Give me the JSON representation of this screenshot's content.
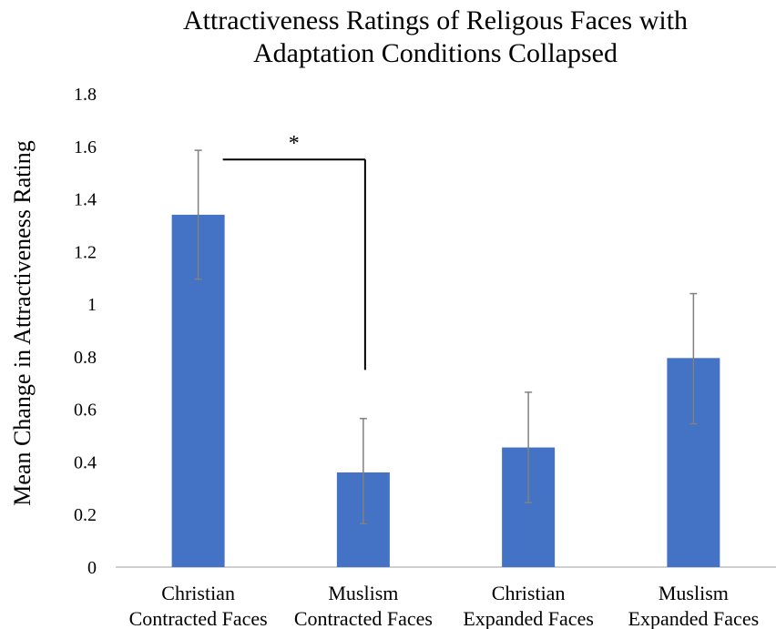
{
  "chart_data": {
    "type": "bar",
    "title_lines": [
      "Attractiveness Ratings of Religous Faces with",
      "Adaptation Conditions Collapsed"
    ],
    "ylabel": "Mean Change in Attractiveness Rating",
    "xlabel": "",
    "categories": [
      [
        "Christian",
        "Contracted Faces"
      ],
      [
        "Muslism",
        "Contracted Faces"
      ],
      [
        "Christian",
        "Expanded Faces"
      ],
      [
        "Muslism",
        "Expanded Faces"
      ]
    ],
    "values": [
      1.34,
      0.36,
      0.455,
      0.795
    ],
    "error_low": [
      1.095,
      0.165,
      0.245,
      0.545
    ],
    "error_high": [
      1.585,
      0.565,
      0.665,
      1.04
    ],
    "ylim": [
      0,
      1.8
    ],
    "yticks": [
      "0",
      "0.2",
      "0.4",
      "0.6",
      "0.8",
      "1",
      "1.2",
      "1.4",
      "1.6",
      "1.8"
    ],
    "ytick_values": [
      0,
      0.2,
      0.4,
      0.6,
      0.8,
      1.0,
      1.2,
      1.4,
      1.6,
      1.8
    ],
    "grid": false,
    "bar_color": "#4472C4",
    "error_color": "#808080",
    "significance": {
      "label": "*",
      "between": [
        0,
        1
      ],
      "bracket_level": 1.55,
      "drop_to": 0.75
    }
  }
}
